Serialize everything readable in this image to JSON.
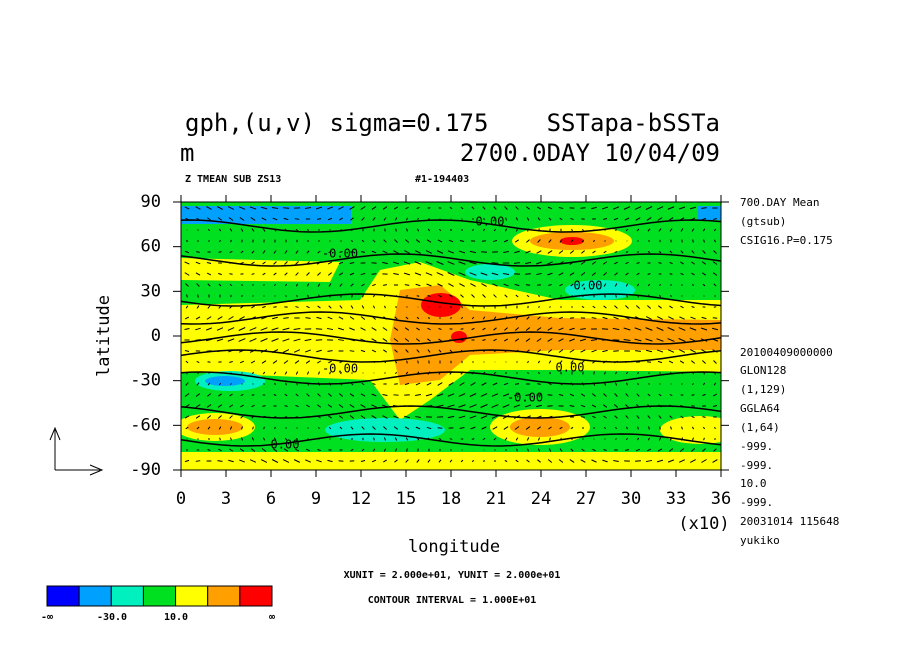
{
  "chart_data": {
    "type": "contour",
    "title_left": [
      "gph,(u,v) sigma=0.175",
      "m"
    ],
    "title_right": [
      "SSTapa-bSSTa",
      "2700.0DAY 10/04/09"
    ],
    "subtitle_left": "Z TMEAN SUB ZS13",
    "subtitle_right": "#1-194403",
    "x_label": "longitude",
    "y_label": "latitude",
    "x_multiplier": "(x10)",
    "xlim": [
      0,
      36
    ],
    "xticks": [
      0,
      3,
      6,
      9,
      12,
      15,
      18,
      21,
      24,
      27,
      30,
      33,
      36
    ],
    "ylim": [
      -90,
      90
    ],
    "yticks": [
      90,
      60,
      30,
      0,
      -30,
      -60,
      -90
    ],
    "side_info": [
      "700.DAY Mean",
      "(gtsub)",
      "CSIG16.P=0.175",
      "20100409000000",
      "GLON128",
      "(1,129)",
      "GGLA64",
      "(1,64)",
      "-999.",
      "-999.",
      "10.0",
      "-999.",
      "20031014 115648",
      "yukiko"
    ],
    "contour_labels": [
      "0.00",
      "-0.00",
      "0.00",
      "-0.00",
      "0.00",
      "-0.00",
      "0.00"
    ],
    "unit_note": "XUNIT = 2.000e+01, YUNIT = 2.000e+01",
    "interval_note": "CONTOUR INTERVAL = 1.000E+01",
    "colorbar_colors": [
      "#0000ff",
      "#00a0ff",
      "#00f0c0",
      "#00e020",
      "#ffff00",
      "#ffa000",
      "#ff0000"
    ],
    "colorbar_labels": [
      "-∞",
      "-30.0",
      "10.0",
      "∞"
    ]
  }
}
